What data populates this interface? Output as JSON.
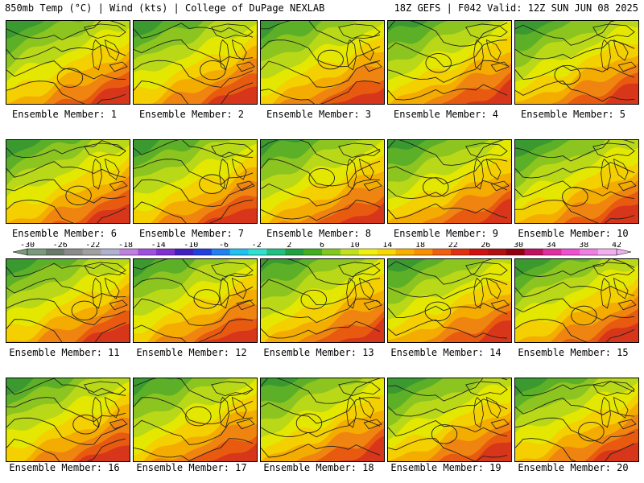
{
  "header": {
    "left": "850mb Temp (°C) | Wind (kts) | College of DuPage NEXLAB",
    "right": "18Z GEFS | F042 Valid: 12Z SUN JUN 08 2025"
  },
  "panels": [
    {
      "label": "Ensemble Member: 1"
    },
    {
      "label": "Ensemble Member: 2"
    },
    {
      "label": "Ensemble Member: 3"
    },
    {
      "label": "Ensemble Member: 4"
    },
    {
      "label": "Ensemble Member: 5"
    },
    {
      "label": "Ensemble Member: 6"
    },
    {
      "label": "Ensemble Member: 7"
    },
    {
      "label": "Ensemble Member: 8"
    },
    {
      "label": "Ensemble Member: 9"
    },
    {
      "label": "Ensemble Member: 10"
    },
    {
      "label": "Ensemble Member: 11"
    },
    {
      "label": "Ensemble Member: 12"
    },
    {
      "label": "Ensemble Member: 13"
    },
    {
      "label": "Ensemble Member: 14"
    },
    {
      "label": "Ensemble Member: 15"
    },
    {
      "label": "Ensemble Member: 16"
    },
    {
      "label": "Ensemble Member: 17"
    },
    {
      "label": "Ensemble Member: 18"
    },
    {
      "label": "Ensemble Member: 19"
    },
    {
      "label": "Ensemble Member: 20"
    }
  ],
  "colorbar": {
    "tick_labels": [
      "-30",
      "-26",
      "-22",
      "-18",
      "-14",
      "-10",
      "-6",
      "-2",
      "2",
      "6",
      "10",
      "14",
      "18",
      "22",
      "26",
      "30",
      "34",
      "38",
      "42"
    ],
    "colors": [
      "#7a9a7a",
      "#6a7a6a",
      "#8a8a8a",
      "#a0a0a0",
      "#b0b0d0",
      "#c080e0",
      "#a050e0",
      "#8030d0",
      "#4020c0",
      "#2040e0",
      "#2080f0",
      "#20c0f0",
      "#30e0d0",
      "#20c080",
      "#20a040",
      "#40b020",
      "#80c820",
      "#c0e020",
      "#f0f010",
      "#f8d800",
      "#f8b000",
      "#f89000",
      "#f06010",
      "#e03010",
      "#d01010",
      "#b01010",
      "#900010",
      "#c01060",
      "#e030a0",
      "#f050d0",
      "#f080e0",
      "#f0b0f0"
    ]
  },
  "field_colors": [
    "#3a9a30",
    "#5cb028",
    "#8cc420",
    "#b8d818",
    "#e4e800",
    "#f4d000",
    "#f4ac00",
    "#f08410",
    "#e85a10",
    "#d8361a"
  ]
}
